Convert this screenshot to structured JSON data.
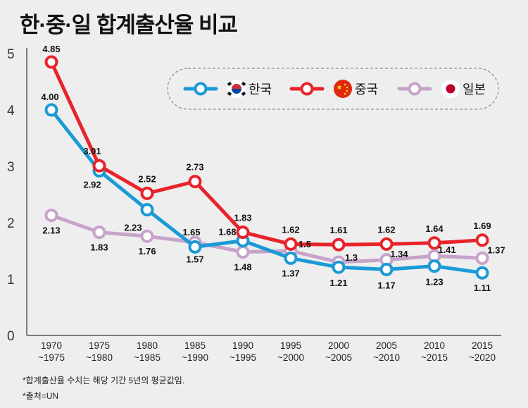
{
  "title": "한·중·일 합계출산율 비교",
  "footnotes": [
    "*합계출산율 수치는 해당 기간 5년의 평균값임.",
    "*출처=UN"
  ],
  "colors": {
    "korea": "#1a9ad6",
    "china": "#e8232a",
    "japan": "#c6a3c9",
    "axis": "#555555"
  },
  "chart_data": {
    "type": "line",
    "title": "한·중·일 합계출산율 비교",
    "categories": [
      [
        "1970",
        "~1975"
      ],
      [
        "1975",
        "~1980"
      ],
      [
        "1980",
        "~1985"
      ],
      [
        "1985",
        "~1990"
      ],
      [
        "1990",
        "~1995"
      ],
      [
        "1995",
        "~2000"
      ],
      [
        "2000",
        "~2005"
      ],
      [
        "2005",
        "~2010"
      ],
      [
        "2010",
        "~2015"
      ],
      [
        "2015",
        "~2020"
      ]
    ],
    "ylim": [
      0,
      5
    ],
    "yticks": [
      0,
      1,
      2,
      3,
      4,
      5
    ],
    "grid": false,
    "legend_position": "top-right",
    "series": [
      {
        "key": "china",
        "name": "중국",
        "icon": "china-flag-icon",
        "values": [
          4.85,
          3.01,
          2.52,
          2.73,
          1.83,
          1.62,
          1.61,
          1.62,
          1.64,
          1.69
        ],
        "labels": [
          "4.85",
          "3.01",
          "2.52",
          "2.73",
          "1.83",
          "1.62",
          "1.61",
          "1.62",
          "1.64",
          "1.69"
        ]
      },
      {
        "key": "korea",
        "name": "한국",
        "icon": "korea-flag-icon",
        "values": [
          4.0,
          2.92,
          2.23,
          1.57,
          1.68,
          1.37,
          1.21,
          1.17,
          1.23,
          1.11
        ],
        "labels": [
          "4.00",
          "2.92",
          "2.23",
          "1.57",
          "1.68",
          "1.37",
          "1.21",
          "1.17",
          "1.23",
          "1.11"
        ]
      },
      {
        "key": "japan",
        "name": "일본",
        "icon": "japan-flag-icon",
        "values": [
          2.13,
          1.83,
          1.76,
          1.65,
          1.48,
          1.5,
          1.3,
          1.34,
          1.41,
          1.37
        ],
        "labels": [
          "2.13",
          "1.83",
          "1.76",
          "1.65",
          "1.48",
          "1.5",
          "1.3",
          "1.34",
          "1.41",
          "1.37"
        ]
      }
    ]
  }
}
